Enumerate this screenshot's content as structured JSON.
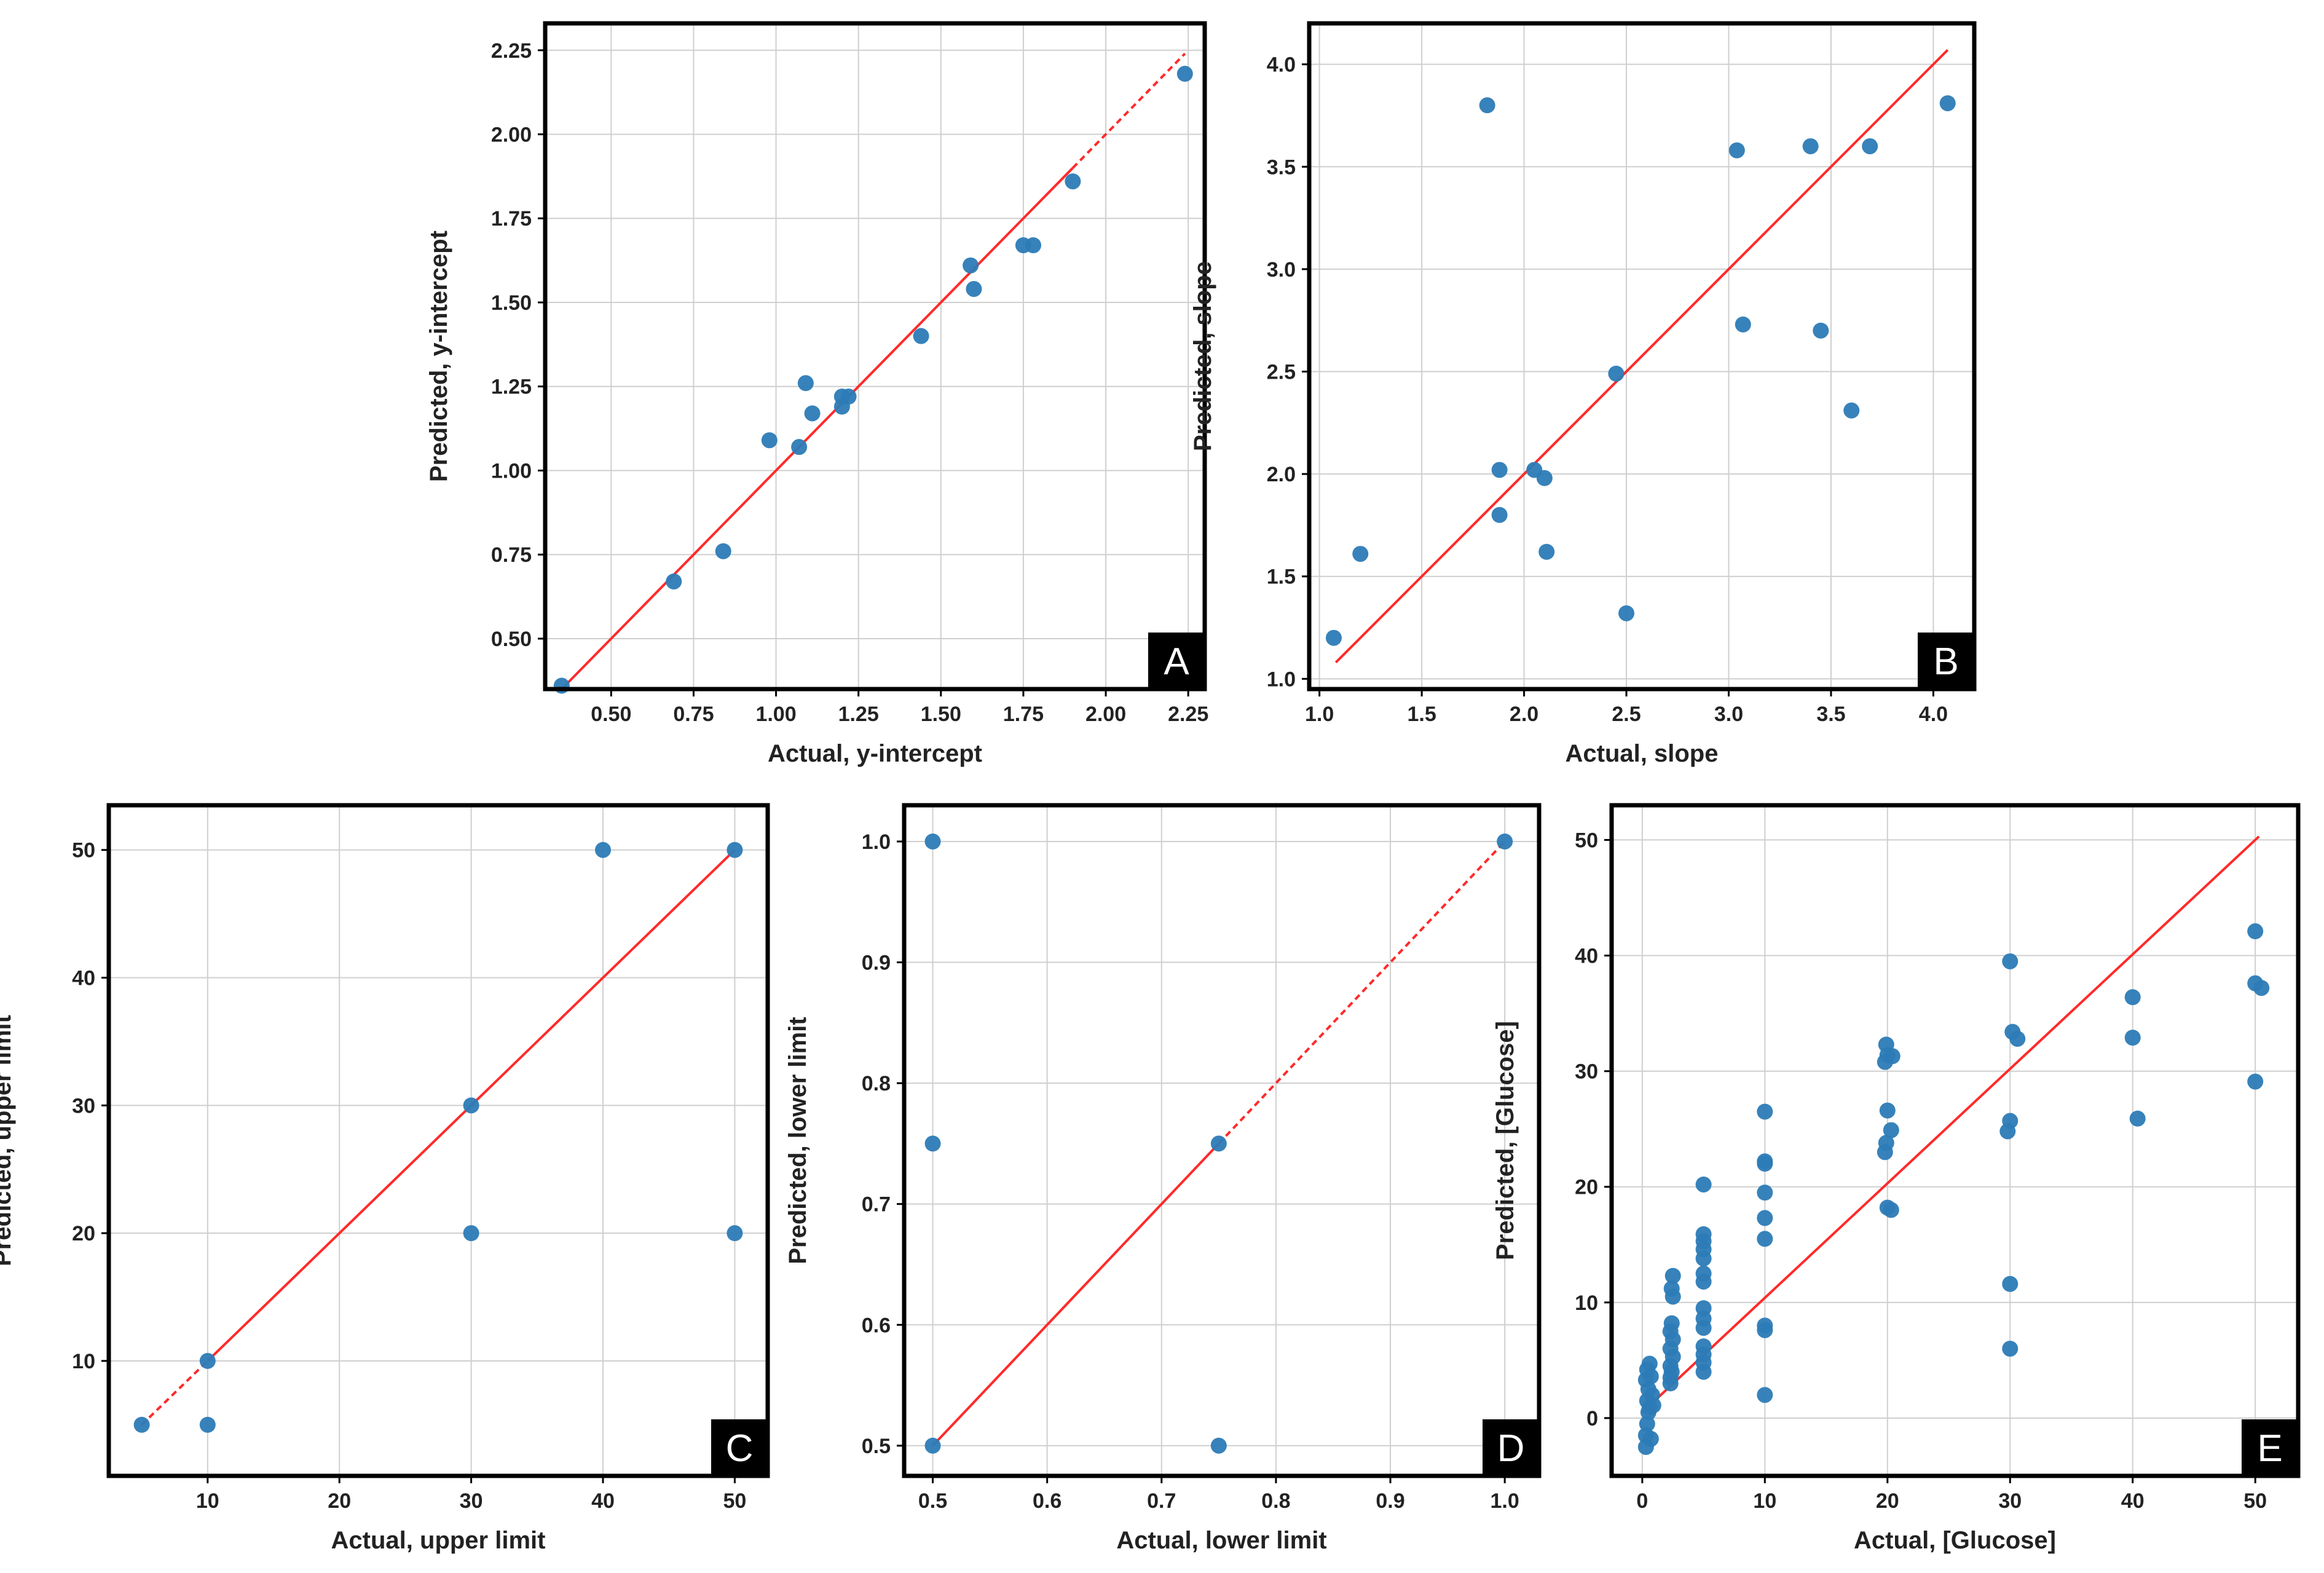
{
  "figure": {
    "colors": {
      "point": "#2c7bb6",
      "fit_line": "#ff2a2a",
      "grid": "#cfcfcf",
      "frame": "#000000",
      "badge_bg": "#000000",
      "badge_text": "#ffffff"
    }
  },
  "chart_data": [
    {
      "id": "A",
      "type": "scatter",
      "badge": "A",
      "title": "",
      "xlabel": "Actual, y-intercept",
      "ylabel": "Predicted, y-intercept",
      "xlim": [
        0.3,
        2.3
      ],
      "ylim": [
        0.35,
        2.33
      ],
      "xticks": [
        0.5,
        0.75,
        1.0,
        1.25,
        1.5,
        1.75,
        2.0,
        2.25
      ],
      "xtick_labels": [
        "0.50",
        "0.75",
        "1.00",
        "1.25",
        "1.50",
        "1.75",
        "2.00",
        "2.25"
      ],
      "yticks": [
        0.5,
        0.75,
        1.0,
        1.25,
        1.5,
        1.75,
        2.0,
        2.25
      ],
      "ytick_labels": [
        "0.50",
        "0.75",
        "1.00",
        "1.25",
        "1.50",
        "1.75",
        "2.00",
        "2.25"
      ],
      "fit_line": {
        "solid": [
          [
            0.35,
            0.35
          ],
          [
            1.9,
            1.9
          ]
        ],
        "dashed": [
          [
            1.9,
            1.9
          ],
          [
            2.24,
            2.24
          ]
        ]
      },
      "points": [
        [
          0.35,
          0.36
        ],
        [
          0.69,
          0.67
        ],
        [
          0.84,
          0.76
        ],
        [
          0.98,
          1.09
        ],
        [
          1.07,
          1.07
        ],
        [
          1.09,
          1.26
        ],
        [
          1.11,
          1.17
        ],
        [
          1.2,
          1.19
        ],
        [
          1.2,
          1.22
        ],
        [
          1.22,
          1.22
        ],
        [
          1.44,
          1.4
        ],
        [
          1.59,
          1.61
        ],
        [
          1.6,
          1.54
        ],
        [
          1.75,
          1.67
        ],
        [
          1.78,
          1.67
        ],
        [
          1.9,
          1.86
        ],
        [
          2.24,
          2.18
        ]
      ]
    },
    {
      "id": "B",
      "type": "scatter",
      "badge": "B",
      "title": "",
      "xlabel": "Actual, slope",
      "ylabel": "Predicted, slope",
      "xlim": [
        0.95,
        4.2
      ],
      "ylim": [
        0.95,
        4.2
      ],
      "xticks": [
        1.0,
        1.5,
        2.0,
        2.5,
        3.0,
        3.5,
        4.0
      ],
      "xtick_labels": [
        "1.0",
        "1.5",
        "2.0",
        "2.5",
        "3.0",
        "3.5",
        "4.0"
      ],
      "yticks": [
        1.0,
        1.5,
        2.0,
        2.5,
        3.0,
        3.5,
        4.0
      ],
      "ytick_labels": [
        "1.0",
        "1.5",
        "2.0",
        "2.5",
        "3.0",
        "3.5",
        "4.0"
      ],
      "fit_line": {
        "solid": [
          [
            1.08,
            1.08
          ],
          [
            4.07,
            4.07
          ]
        ]
      },
      "points": [
        [
          1.07,
          1.2
        ],
        [
          1.2,
          1.61
        ],
        [
          1.82,
          3.8
        ],
        [
          1.88,
          2.02
        ],
        [
          1.88,
          1.8
        ],
        [
          2.05,
          2.02
        ],
        [
          2.1,
          1.98
        ],
        [
          2.11,
          1.62
        ],
        [
          2.45,
          2.49
        ],
        [
          2.5,
          1.32
        ],
        [
          3.04,
          3.58
        ],
        [
          3.07,
          2.73
        ],
        [
          3.4,
          3.6
        ],
        [
          3.45,
          2.7
        ],
        [
          3.6,
          2.31
        ],
        [
          3.69,
          3.6
        ],
        [
          4.07,
          3.81
        ]
      ]
    },
    {
      "id": "C",
      "type": "scatter",
      "badge": "C",
      "title": "",
      "xlabel": "Actual, upper limit",
      "ylabel": "Predicted, upper limit",
      "xlim": [
        2.5,
        52.5
      ],
      "ylim": [
        1,
        53.5
      ],
      "xticks": [
        10,
        20,
        30,
        40,
        50
      ],
      "xtick_labels": [
        "10",
        "20",
        "30",
        "40",
        "50"
      ],
      "yticks": [
        10,
        20,
        30,
        40,
        50
      ],
      "ytick_labels": [
        "10",
        "20",
        "30",
        "40",
        "50"
      ],
      "fit_line": {
        "dashed": [
          [
            5,
            5
          ],
          [
            10,
            10
          ]
        ],
        "solid": [
          [
            10,
            10
          ],
          [
            50,
            50
          ]
        ]
      },
      "points": [
        [
          5,
          5
        ],
        [
          10,
          10
        ],
        [
          10,
          5
        ],
        [
          30,
          30
        ],
        [
          30,
          20
        ],
        [
          40,
          50
        ],
        [
          50,
          50
        ],
        [
          50,
          20
        ]
      ]
    },
    {
      "id": "D",
      "type": "scatter",
      "badge": "D",
      "title": "",
      "xlabel": "Actual, lower limit",
      "ylabel": "Predicted, lower limit",
      "xlim": [
        0.475,
        1.03
      ],
      "ylim": [
        0.475,
        1.03
      ],
      "xticks": [
        0.5,
        0.6,
        0.7,
        0.8,
        0.9,
        1.0
      ],
      "xtick_labels": [
        "0.5",
        "0.6",
        "0.7",
        "0.8",
        "0.9",
        "1.0"
      ],
      "yticks": [
        0.5,
        0.6,
        0.7,
        0.8,
        0.9,
        1.0
      ],
      "ytick_labels": [
        "0.5",
        "0.6",
        "0.7",
        "0.8",
        "0.9",
        "1.0"
      ],
      "fit_line": {
        "solid": [
          [
            0.5,
            0.5
          ],
          [
            0.75,
            0.75
          ]
        ],
        "dashed": [
          [
            0.75,
            0.75
          ],
          [
            1.0,
            1.0
          ]
        ]
      },
      "points": [
        [
          0.5,
          1.0
        ],
        [
          0.5,
          0.75
        ],
        [
          0.5,
          0.5
        ],
        [
          0.75,
          0.75
        ],
        [
          0.75,
          0.5
        ],
        [
          1.0,
          1.0
        ]
      ]
    },
    {
      "id": "E",
      "type": "scatter",
      "badge": "E",
      "title": "",
      "xlabel": "Actual, [Glucose]",
      "ylabel": "Predicted, [Glucose]",
      "xlim": [
        -2.5,
        53.5
      ],
      "ylim": [
        -5,
        53
      ],
      "xticks": [
        0,
        10,
        20,
        30,
        40,
        50
      ],
      "xtick_labels": [
        "0",
        "10",
        "20",
        "30",
        "40",
        "50"
      ],
      "yticks": [
        0,
        10,
        20,
        30,
        40,
        50
      ],
      "ytick_labels": [
        "0",
        "10",
        "20",
        "30",
        "40",
        "50"
      ],
      "fit_line": {
        "solid": [
          [
            0,
            0.5
          ],
          [
            50.3,
            50.3
          ]
        ]
      },
      "points": [
        [
          0.3,
          -2.5
        ],
        [
          0.3,
          -1.5
        ],
        [
          0.4,
          -0.5
        ],
        [
          0.5,
          0.5
        ],
        [
          0.4,
          1.5
        ],
        [
          0.5,
          2.5
        ],
        [
          0.3,
          3.3
        ],
        [
          0.4,
          4.2
        ],
        [
          0.6,
          4.7
        ],
        [
          0.7,
          3.6
        ],
        [
          0.8,
          2.0
        ],
        [
          0.9,
          1.1
        ],
        [
          0.7,
          -1.8
        ],
        [
          0.6,
          0.9
        ],
        [
          2.3,
          3.5
        ],
        [
          2.3,
          4.5
        ],
        [
          2.5,
          5.3
        ],
        [
          2.3,
          6.0
        ],
        [
          2.5,
          6.8
        ],
        [
          2.3,
          7.5
        ],
        [
          2.4,
          8.2
        ],
        [
          2.5,
          10.5
        ],
        [
          2.4,
          11.2
        ],
        [
          2.5,
          12.3
        ],
        [
          2.3,
          3.0
        ],
        [
          2.4,
          4.0
        ],
        [
          5.0,
          4.0
        ],
        [
          5.0,
          4.8
        ],
        [
          5.0,
          5.5
        ],
        [
          5.0,
          6.2
        ],
        [
          5.0,
          7.8
        ],
        [
          5.0,
          8.6
        ],
        [
          5.0,
          9.5
        ],
        [
          5.0,
          11.8
        ],
        [
          5.0,
          12.5
        ],
        [
          5.0,
          13.8
        ],
        [
          5.0,
          14.6
        ],
        [
          5.0,
          15.3
        ],
        [
          5.0,
          15.9
        ],
        [
          5.0,
          20.2
        ],
        [
          10.0,
          2.0
        ],
        [
          10.0,
          7.6
        ],
        [
          10.0,
          8.0
        ],
        [
          10.0,
          15.5
        ],
        [
          10.0,
          17.3
        ],
        [
          10.0,
          19.5
        ],
        [
          10.0,
          22.0
        ],
        [
          10.0,
          22.2
        ],
        [
          10.0,
          26.5
        ],
        [
          20.0,
          18.2
        ],
        [
          20.3,
          18.0
        ],
        [
          19.8,
          23.0
        ],
        [
          19.9,
          23.8
        ],
        [
          20.3,
          24.9
        ],
        [
          20.0,
          26.6
        ],
        [
          19.8,
          30.8
        ],
        [
          20.0,
          31.4
        ],
        [
          20.4,
          31.3
        ],
        [
          19.9,
          32.3
        ],
        [
          30.0,
          6.0
        ],
        [
          30.0,
          11.6
        ],
        [
          29.8,
          24.8
        ],
        [
          30.0,
          25.7
        ],
        [
          30.2,
          33.4
        ],
        [
          30.6,
          32.8
        ],
        [
          30.0,
          39.5
        ],
        [
          40.0,
          36.4
        ],
        [
          40.0,
          32.9
        ],
        [
          40.4,
          25.9
        ],
        [
          50.0,
          42.1
        ],
        [
          50.0,
          37.6
        ],
        [
          50.5,
          37.2
        ],
        [
          50.0,
          29.1
        ]
      ]
    }
  ]
}
